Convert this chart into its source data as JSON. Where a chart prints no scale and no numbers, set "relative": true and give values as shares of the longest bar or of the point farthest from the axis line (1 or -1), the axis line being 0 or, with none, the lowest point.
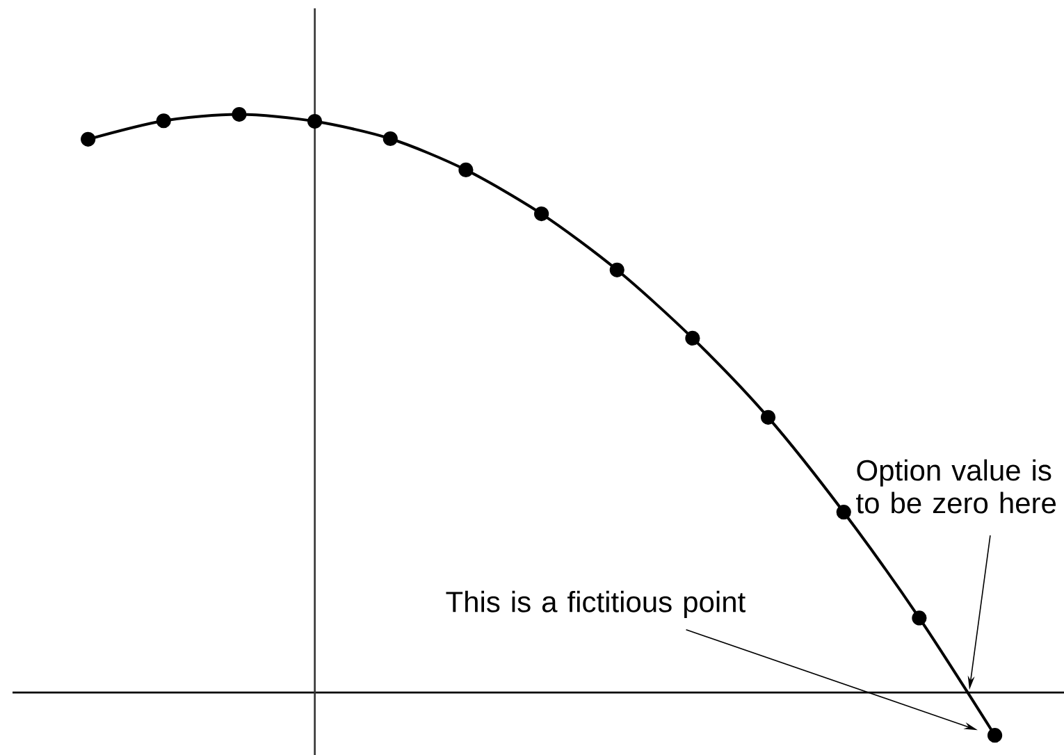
{
  "chart_data": {
    "type": "line",
    "relative": true,
    "marker": "circle",
    "line_style": "solid",
    "categories": [
      null,
      null,
      null,
      null,
      null,
      null,
      null,
      null,
      null,
      null,
      null,
      null,
      null
    ],
    "series": [
      {
        "color": "#000000",
        "values": [
          0.957,
          0.989,
          1,
          0.988,
          0.958,
          0.904,
          0.828,
          0.731,
          0.613,
          0.476,
          0.312,
          0.129,
          -0.074
        ]
      }
    ],
    "annotations": [
      "This is a fictitious point",
      "Option value is to be zero here"
    ]
  }
}
